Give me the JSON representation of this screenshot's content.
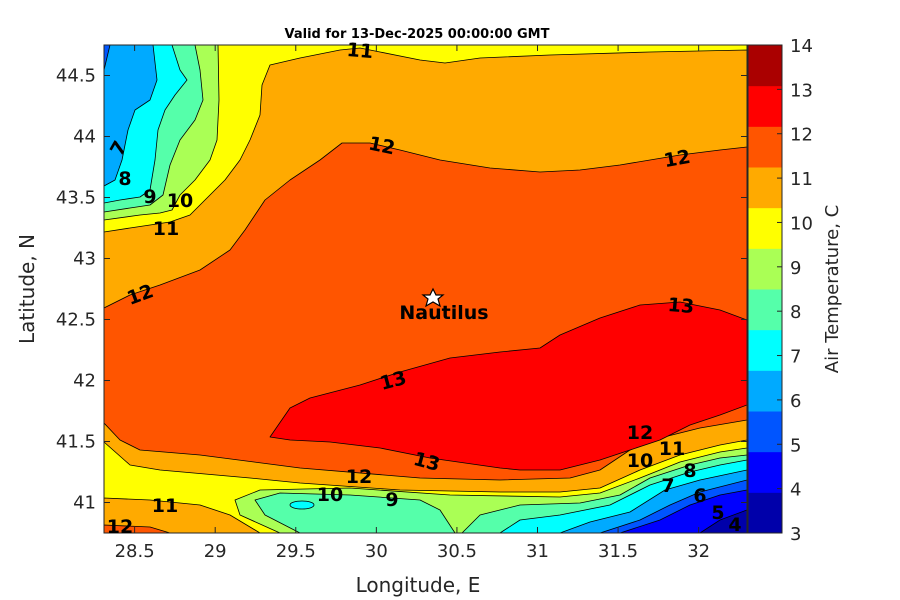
{
  "chart_data": {
    "type": "contour",
    "title": "Valid for 13-Dec-2025 00:00:00 GMT",
    "xlabel": "Longitude, E",
    "ylabel": "Latitude, N",
    "xlim": [
      28.31,
      32.3
    ],
    "ylim": [
      40.75,
      44.75
    ],
    "xticks": [
      "28.5",
      "29",
      "29.5",
      "30",
      "30.5",
      "31",
      "31.5",
      "32"
    ],
    "yticks": [
      "41",
      "41.5",
      "42",
      "42.5",
      "43",
      "43.5",
      "44",
      "44.5"
    ],
    "colorbar": {
      "label": "Air Temperature, C",
      "range": [
        3,
        14
      ],
      "ticks": [
        "3",
        "4",
        "5",
        "6",
        "7",
        "8",
        "9",
        "10",
        "11",
        "12",
        "13",
        "14"
      ],
      "colors": [
        "#0000AA",
        "#0000FF",
        "#0055FF",
        "#00AAFF",
        "#00FFFF",
        "#55FFAA",
        "#AAFF55",
        "#FFFF00",
        "#FFAA00",
        "#FF5500",
        "#FF0000",
        "#AA0000"
      ]
    },
    "contour_levels": [
      4,
      5,
      6,
      7,
      8,
      9,
      10,
      11,
      12,
      13
    ],
    "contour_labels": [
      "11",
      "12",
      "12",
      "7",
      "8",
      "9",
      "10",
      "11",
      "12",
      "13",
      "13",
      "13",
      "12",
      "10",
      "9",
      "11",
      "12",
      "12",
      "11",
      "10",
      "8",
      "7",
      "6",
      "5",
      "4"
    ],
    "marker": {
      "name": "Nautilus",
      "lon": 30.35,
      "lat": 42.68
    }
  }
}
